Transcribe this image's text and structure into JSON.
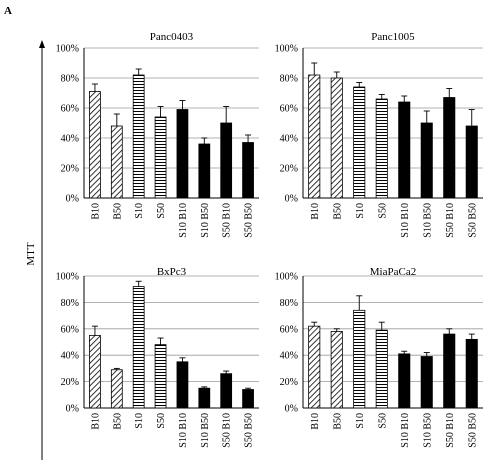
{
  "figure_label": "A",
  "shared_ylabel": "MTT",
  "colors": {
    "bar_stroke": "#000000",
    "grid": "#9a9a9a",
    "solid_fill": "#000000",
    "pattern_fill": "#ffffff"
  },
  "chart_data": [
    {
      "type": "bar",
      "title": "Panc0403",
      "categories": [
        "B10",
        "B50",
        "S10",
        "S50",
        "S10 B10",
        "S10 B50",
        "S50 B10",
        "S50 B50"
      ],
      "patterns": [
        "diagonal",
        "diagonal",
        "horizontal",
        "horizontal",
        "solid",
        "solid",
        "solid",
        "solid"
      ],
      "values": [
        71,
        48,
        82,
        54,
        59,
        36,
        50,
        37
      ],
      "errors": [
        5,
        8,
        4,
        7,
        6,
        4,
        11,
        5
      ],
      "ylim": [
        0,
        100
      ],
      "yticks": [
        "0%",
        "20%",
        "40%",
        "60%",
        "80%",
        "100%"
      ],
      "grid": true
    },
    {
      "type": "bar",
      "title": "Panc1005",
      "categories": [
        "B10",
        "B50",
        "S10",
        "S50",
        "S10 B10",
        "S10 B50",
        "S50 B10",
        "S50 B50"
      ],
      "patterns": [
        "diagonal",
        "diagonal",
        "horizontal",
        "horizontal",
        "solid",
        "solid",
        "solid",
        "solid"
      ],
      "values": [
        82,
        80,
        74,
        66,
        64,
        50,
        67,
        48
      ],
      "errors": [
        8,
        4,
        3,
        3,
        4,
        8,
        6,
        11
      ],
      "ylim": [
        0,
        100
      ],
      "yticks": [
        "0%",
        "20%",
        "40%",
        "60%",
        "80%",
        "100%"
      ],
      "grid": true
    },
    {
      "type": "bar",
      "title": "BxPc3",
      "categories": [
        "B10",
        "B50",
        "S10",
        "S50",
        "S10 B10",
        "S10 B50",
        "S50 B10",
        "S50 B50"
      ],
      "patterns": [
        "diagonal",
        "diagonal",
        "horizontal",
        "horizontal",
        "solid",
        "solid",
        "solid",
        "solid"
      ],
      "values": [
        55,
        29,
        92,
        48,
        35,
        15,
        26,
        14
      ],
      "errors": [
        7,
        1,
        4,
        5,
        3,
        1,
        2,
        1
      ],
      "ylim": [
        0,
        100
      ],
      "yticks": [
        "0%",
        "20%",
        "40%",
        "60%",
        "80%",
        "100%"
      ],
      "grid": true
    },
    {
      "type": "bar",
      "title": "MiaPaCa2",
      "categories": [
        "B10",
        "B50",
        "S10",
        "S50",
        "S10 B10",
        "S10 B50",
        "S50 B10",
        "S50 B50"
      ],
      "patterns": [
        "diagonal",
        "diagonal",
        "horizontal",
        "horizontal",
        "solid",
        "solid",
        "solid",
        "solid"
      ],
      "values": [
        62,
        58,
        74,
        59,
        41,
        39,
        56,
        52
      ],
      "errors": [
        3,
        2,
        11,
        6,
        2,
        3,
        4,
        4
      ],
      "ylim": [
        0,
        100
      ],
      "yticks": [
        "0%",
        "20%",
        "40%",
        "60%",
        "80%",
        "100%"
      ],
      "grid": true
    }
  ]
}
